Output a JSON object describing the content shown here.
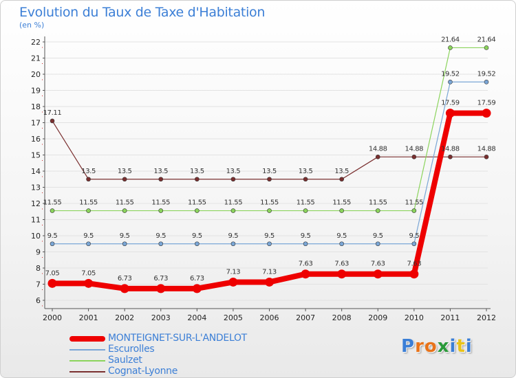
{
  "title": "Evolution du Taux de Taxe d'Habitation",
  "subtitle": "(en %)",
  "colors": {
    "title": "#3c7fd6",
    "axis": "#555555",
    "grid": "#e2e2e2",
    "tick_mark": "#cc2222"
  },
  "logo": {
    "text": "Proxiti",
    "letters": [
      {
        "ch": "P",
        "color": "#3a7ed6"
      },
      {
        "ch": "r",
        "color": "#e8731a"
      },
      {
        "ch": "o",
        "color": "#e8731a"
      },
      {
        "ch": "x",
        "color": "#2a9a3a"
      },
      {
        "ch": "i",
        "color": "#3a7ed6"
      },
      {
        "ch": "t",
        "color": "#e8c21a"
      },
      {
        "ch": "i",
        "color": "#3a7ed6"
      }
    ]
  },
  "chart_data": {
    "type": "line",
    "x": [
      "2000",
      "2001",
      "2002",
      "2003",
      "2004",
      "2005",
      "2006",
      "2007",
      "2008",
      "2009",
      "2010",
      "2011",
      "2012"
    ],
    "ylim": [
      6,
      22
    ],
    "yticks": [
      6,
      7,
      8,
      9,
      10,
      11,
      12,
      13,
      14,
      15,
      16,
      17,
      18,
      19,
      20,
      21,
      22
    ],
    "grid": "horizontal",
    "legend_position": "bottom-left",
    "series": [
      {
        "name": "Cognat-Lyonne",
        "color": "#7a2f2f",
        "width": 1.2,
        "marker": 3,
        "values": [
          17.11,
          13.5,
          13.5,
          13.5,
          13.5,
          13.5,
          13.5,
          13.5,
          13.5,
          14.88,
          14.88,
          14.88,
          14.88
        ],
        "labels": [
          "17.11",
          "13.5",
          "13.5",
          "13.5",
          "13.5",
          "13.5",
          "13.5",
          "13.5",
          "13.5",
          "14.88",
          "14.88",
          "14.88",
          "14.88"
        ]
      },
      {
        "name": "Saulzet",
        "color": "#8bd45c",
        "width": 1.2,
        "marker": 3,
        "values": [
          11.55,
          11.55,
          11.55,
          11.55,
          11.55,
          11.55,
          11.55,
          11.55,
          11.55,
          11.55,
          11.55,
          21.64,
          21.64
        ],
        "labels": [
          "11.55",
          "11.55",
          "11.55",
          "11.55",
          "11.55",
          "11.55",
          "11.55",
          "11.55",
          "11.55",
          "11.55",
          "11.55",
          "21.64",
          "21.64"
        ]
      },
      {
        "name": "Escurolles",
        "color": "#7aa6d6",
        "width": 1.2,
        "marker": 3,
        "values": [
          9.5,
          9.5,
          9.5,
          9.5,
          9.5,
          9.5,
          9.5,
          9.5,
          9.5,
          9.5,
          9.5,
          19.52,
          19.52
        ],
        "labels": [
          "9.5",
          "9.5",
          "9.5",
          "9.5",
          "9.5",
          "9.5",
          "9.5",
          "9.5",
          "9.5",
          "9.5",
          "9.5",
          "19.52",
          "19.52"
        ]
      },
      {
        "name": "MONTEIGNET-SUR-L'ANDELOT",
        "color": "#ee0000",
        "width": 8,
        "marker": 6.5,
        "values": [
          7.05,
          7.05,
          6.73,
          6.73,
          6.73,
          7.13,
          7.13,
          7.63,
          7.63,
          7.63,
          7.63,
          17.59,
          17.59
        ],
        "labels": [
          "7.05",
          "7.05",
          "6.73",
          "6.73",
          "6.73",
          "7.13",
          "7.13",
          "7.63",
          "7.63",
          "7.63",
          "7.63",
          "17.59",
          "17.59"
        ]
      }
    ],
    "legend": [
      {
        "name": "MONTEIGNET-SUR-L'ANDELOT",
        "color": "#ee0000",
        "thick": true
      },
      {
        "name": "Escurolles",
        "color": "#7aa6d6",
        "thick": false
      },
      {
        "name": "Saulzet",
        "color": "#8bd45c",
        "thick": false
      },
      {
        "name": "Cognat-Lyonne",
        "color": "#7a2f2f",
        "thick": false
      }
    ]
  }
}
